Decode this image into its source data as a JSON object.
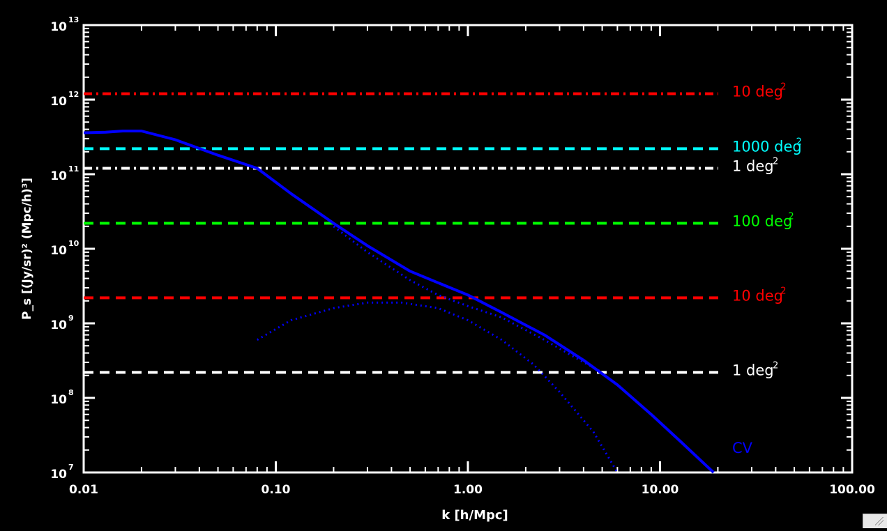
{
  "chart_data": {
    "type": "line",
    "title": "",
    "xlabel": "k [h/Mpc]",
    "ylabel": "P_s [(Jy/sr)² (Mpc/h)³]",
    "xscale": "log",
    "yscale": "log",
    "xlim": [
      0.01,
      100
    ],
    "ylim": [
      10000000.0,
      10000000000000.0
    ],
    "grid": false,
    "x_tick_labels": [
      "0.01",
      "0.10",
      "1.00",
      "10.00",
      "100.00"
    ],
    "x_ticks": [
      0.01,
      0.1,
      1,
      10,
      100
    ],
    "y_ticks": [
      {
        "value": 10000000.0,
        "mantissa": "10",
        "exp": "7"
      },
      {
        "value": 100000000.0,
        "mantissa": "10",
        "exp": "8"
      },
      {
        "value": 1000000000.0,
        "mantissa": "10",
        "exp": "9"
      },
      {
        "value": 10000000000.0,
        "mantissa": "10",
        "exp": "10"
      },
      {
        "value": 100000000000.0,
        "mantissa": "10",
        "exp": "11"
      },
      {
        "value": 1000000000000.0,
        "mantissa": "10",
        "exp": "12"
      },
      {
        "value": 10000000000000.0,
        "mantissa": "10",
        "exp": "13"
      }
    ],
    "series": [
      {
        "style": "solid",
        "color": "#0000ff",
        "width": 4,
        "x": [
          0.01,
          0.013,
          0.016,
          0.02,
          0.03,
          0.05,
          0.08,
          0.12,
          0.2,
          0.3,
          0.5,
          0.7,
          1.0,
          1.5,
          2.5,
          4.0,
          6.0,
          9.0,
          13.0,
          19.0
        ],
        "y": [
          360000000000.0,
          365000000000.0,
          380000000000.0,
          380000000000.0,
          290000000000.0,
          180000000000.0,
          120000000000.0,
          55000000000.0,
          22000000000.0,
          11000000000.0,
          5000000000.0,
          3500000000.0,
          2400000000.0,
          1400000000.0,
          700000000.0,
          320000000.0,
          150000000.0,
          60000000.0,
          25000000.0,
          10000000.0
        ]
      },
      {
        "style": "dotted",
        "color": "#0000ff",
        "width": 3,
        "x": [
          0.08,
          0.12,
          0.2,
          0.3,
          0.45,
          0.7,
          1.0,
          1.5,
          2.2,
          3.0,
          4.5,
          6.0
        ],
        "y": [
          600000000.0,
          1100000000.0,
          1600000000.0,
          1900000000.0,
          1900000000.0,
          1600000000.0,
          1100000000.0,
          600000000.0,
          280000000.0,
          120000000.0,
          35000000.0,
          10000000.0
        ]
      },
      {
        "style": "dotted",
        "color": "#0000ff",
        "width": 3,
        "x": [
          0.2,
          0.3,
          0.5,
          0.7,
          1.0,
          1.5,
          2.5,
          4.0,
          5.0
        ],
        "y": [
          20000000000.0,
          9000000000.0,
          3800000000.0,
          2400000000.0,
          1700000000.0,
          1200000000.0,
          600000000.0,
          300000000.0,
          220000000.0
        ]
      }
    ],
    "reference_lines": [
      {
        "y": 1200000000000.0,
        "color": "#ff0000",
        "style": "dashdot",
        "label": "10 deg",
        "exp": "2"
      },
      {
        "y": 220000000000.0,
        "color": "#00ffff",
        "style": "dashed",
        "label": "1000 deg",
        "exp": "2"
      },
      {
        "y": 120000000000.0,
        "color": "#ffffff",
        "style": "dashdot",
        "label": "1 deg",
        "exp": "2"
      },
      {
        "y": 22000000000.0,
        "color": "#00ff00",
        "style": "dashed",
        "label": "100 deg",
        "exp": "2"
      },
      {
        "y": 2200000000.0,
        "color": "#ff0000",
        "style": "dashed",
        "label": "10 deg",
        "exp": "2"
      },
      {
        "y": 220000000.0,
        "color": "#ffffff",
        "style": "dashed",
        "label": "1 deg",
        "exp": "2"
      }
    ],
    "annotations": [
      {
        "text": "CV",
        "color": "#0000ff"
      }
    ]
  }
}
